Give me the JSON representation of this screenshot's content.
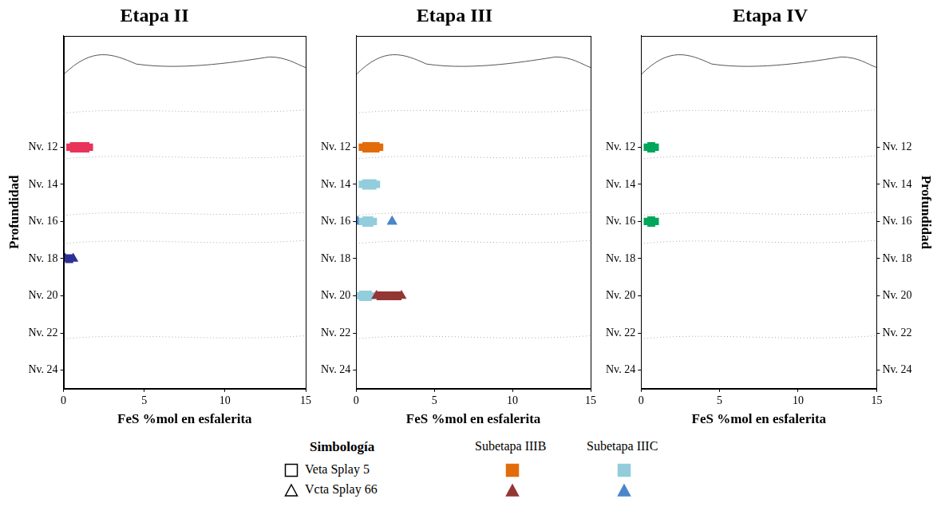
{
  "chart_data": [
    {
      "type": "scatter",
      "title": "Etapa II",
      "xlabel": "FeS %mol en esfalerita",
      "ylabel": "Profundidad",
      "xlim": [
        0,
        15
      ],
      "xticks": [
        0,
        5,
        10,
        15
      ],
      "ylim": [
        6,
        25
      ],
      "yticks": [
        {
          "value": 12,
          "label": "Nv. 12"
        },
        {
          "value": 14,
          "label": "Nv. 14"
        },
        {
          "value": 16,
          "label": "Nv. 16"
        },
        {
          "value": 18,
          "label": "Nv. 18"
        },
        {
          "value": 20,
          "label": "Nv. 20"
        },
        {
          "value": 22,
          "label": "Nv. 22"
        },
        {
          "value": 24,
          "label": "Nv. 24"
        }
      ],
      "series": [
        {
          "color": "#e8345a",
          "marker": "square",
          "ranges": [
            {
              "y": 12,
              "xmin": 0.4,
              "xmax": 1.6
            }
          ]
        },
        {
          "color": "#2e3192",
          "marker": "triangle",
          "ranges": [
            {
              "y": 18,
              "xmin": 0.1,
              "xmax": 0.6
            }
          ]
        }
      ]
    },
    {
      "type": "scatter",
      "title": "Etapa III",
      "xlabel": "FeS %mol en esfalerita",
      "xlim": [
        0,
        15
      ],
      "xticks": [
        0,
        5,
        10,
        15
      ],
      "ylim": [
        6,
        25
      ],
      "yticks": [
        {
          "value": 12,
          "label": "Nv. 12"
        },
        {
          "value": 14,
          "label": "Nv. 14"
        },
        {
          "value": 16,
          "label": "Nv. 16"
        },
        {
          "value": 18,
          "label": "Nv. 18"
        },
        {
          "value": 20,
          "label": "Nv. 20"
        },
        {
          "value": 22,
          "label": "Nv. 22"
        },
        {
          "value": 24,
          "label": "Nv. 24"
        }
      ],
      "series": [
        {
          "color": "#e36c0a",
          "marker": "square",
          "ranges": [
            {
              "y": 12,
              "xmin": 0.4,
              "xmax": 1.5
            }
          ]
        },
        {
          "color": "#943634",
          "marker": "triangle",
          "ranges": [
            {
              "y": 20,
              "xmin": 1.3,
              "xmax": 2.9
            }
          ]
        },
        {
          "color": "#92cddc",
          "marker": "square",
          "ranges": [
            {
              "y": 14,
              "xmin": 0.4,
              "xmax": 1.3
            },
            {
              "y": 16,
              "xmin": 0.4,
              "xmax": 1.1
            },
            {
              "y": 20,
              "xmin": 0.2,
              "xmax": 1.0
            }
          ]
        },
        {
          "color": "#4a86c8",
          "marker": "triangle",
          "ranges": [
            {
              "y": 16,
              "xmin": 0.1,
              "xmax": 0.1
            },
            {
              "y": 16,
              "xmin": 2.3,
              "xmax": 2.3
            }
          ]
        }
      ]
    },
    {
      "type": "scatter",
      "title": "Etapa IV",
      "xlabel": "FeS %mol en esfalerita",
      "xlim": [
        0,
        15
      ],
      "xticks": [
        0,
        5,
        10,
        15
      ],
      "ylim": [
        6,
        25
      ],
      "yticks": [
        {
          "value": 12,
          "label": "Nv. 12"
        },
        {
          "value": 14,
          "label": "Nv. 14"
        },
        {
          "value": 16,
          "label": "Nv. 16"
        },
        {
          "value": 18,
          "label": "Nv. 18"
        },
        {
          "value": 20,
          "label": "Nv. 20"
        },
        {
          "value": 22,
          "label": "Nv. 22"
        },
        {
          "value": 24,
          "label": "Nv. 24"
        }
      ],
      "y2label": "Profundidad",
      "y2lim": [
        6,
        25
      ],
      "y2ticks": [
        {
          "value": 12,
          "label": "Nv. 12"
        },
        {
          "value": 14,
          "label": "Nv. 14"
        },
        {
          "value": 16,
          "label": "Nv. 16"
        },
        {
          "value": 18,
          "label": "Nv. 18"
        },
        {
          "value": 20,
          "label": "Nv. 20"
        },
        {
          "value": 22,
          "label": "Nv. 22"
        },
        {
          "value": 24,
          "label": "Nv. 24"
        }
      ],
      "series": [
        {
          "color": "#00a65a",
          "marker": "square",
          "ranges": [
            {
              "y": 12,
              "xmin": 0.4,
              "xmax": 0.9
            },
            {
              "y": 16,
              "xmin": 0.4,
              "xmax": 0.9
            }
          ]
        }
      ]
    }
  ],
  "symbology": {
    "title": "Simbología",
    "rows": [
      {
        "label": "Veta Splay 5",
        "marker": "square"
      },
      {
        "label": "Vcta Splay 66",
        "marker": "triangle"
      }
    ],
    "columns": [
      {
        "label": "Subetapa IIIB",
        "colors": [
          "#e36c0a",
          "#943634"
        ]
      },
      {
        "label": "Subetapa IIIC",
        "colors": [
          "#92cddc",
          "#4a86c8"
        ]
      }
    ]
  }
}
